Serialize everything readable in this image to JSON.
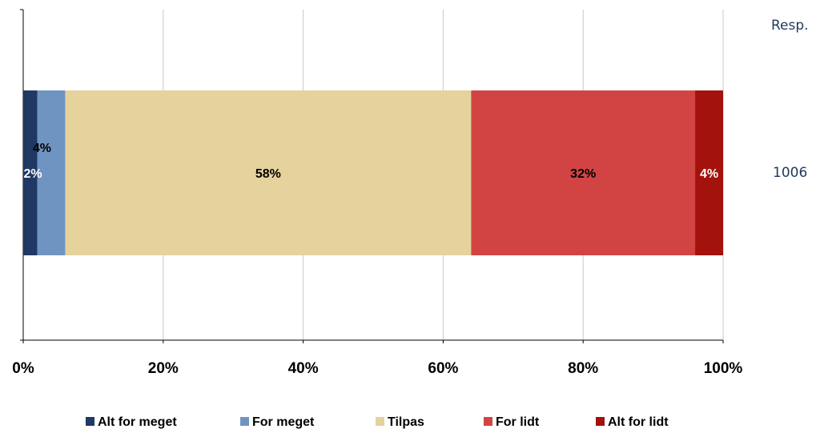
{
  "chart_data": {
    "type": "bar",
    "orientation": "horizontal",
    "stacked": true,
    "title": "",
    "xlabel": "",
    "ylabel": "",
    "xlim": [
      0,
      100
    ],
    "x_ticks": [
      "0%",
      "20%",
      "40%",
      "60%",
      "80%",
      "100%"
    ],
    "grid": "vertical",
    "legend_position": "bottom",
    "series": [
      {
        "name": "Alt for meget",
        "value": 2,
        "label": "2%",
        "color": "#1f3864",
        "label_color": "#ffffff"
      },
      {
        "name": "For meget",
        "value": 4,
        "label": "4%",
        "color": "#7094c2",
        "label_color": "#000000"
      },
      {
        "name": "Tilpas",
        "value": 58,
        "label": "58%",
        "color": "#e5d29c",
        "label_color": "#000000"
      },
      {
        "name": "For lidt",
        "value": 32,
        "label": "32%",
        "color": "#d24444",
        "label_color": "#000000"
      },
      {
        "name": "Alt for lidt",
        "value": 4,
        "label": "4%",
        "color": "#a3120c",
        "label_color": "#ffffff"
      }
    ],
    "resp_header": "Resp.",
    "resp_value": "1006"
  }
}
